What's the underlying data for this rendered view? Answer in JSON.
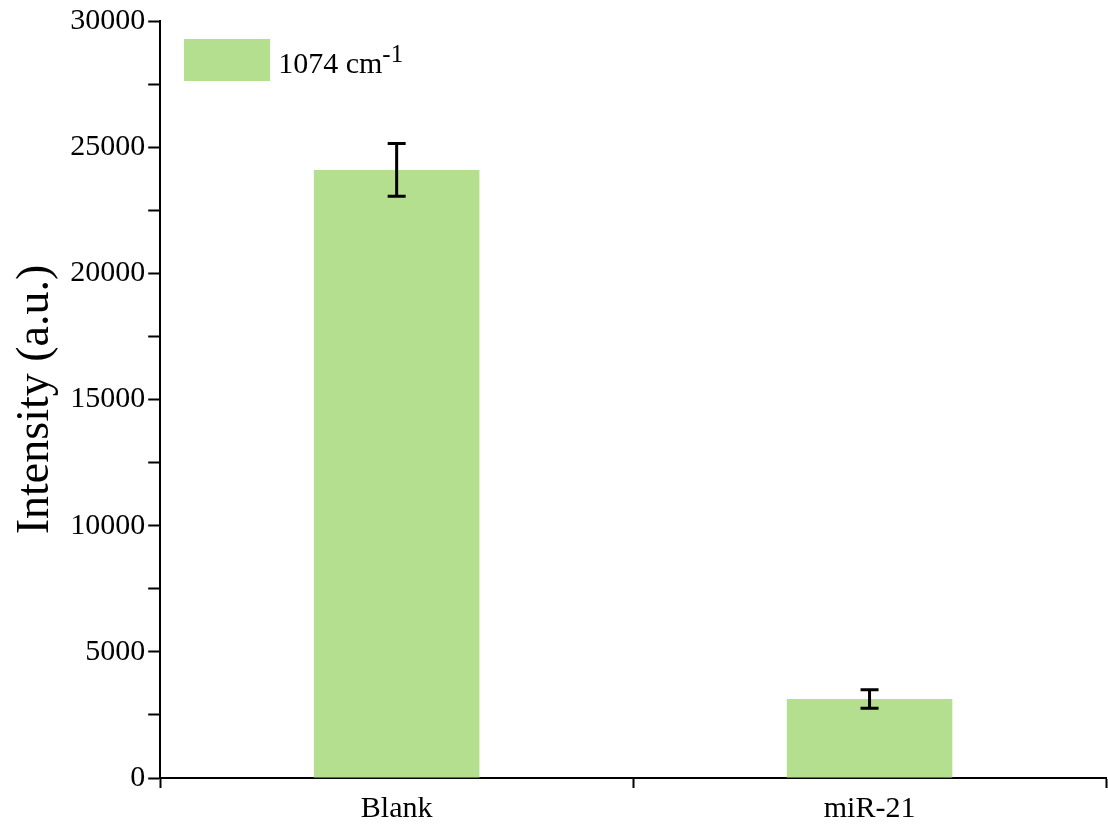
{
  "chart_data": {
    "type": "bar",
    "ylabel": "Intensity (a.u.)",
    "categories": [
      "Blank",
      "miR-21"
    ],
    "series": [
      {
        "name": "1074 cm$^{-1}$",
        "color": "#b4df8e",
        "values": [
          24100,
          3130
        ],
        "errors": [
          1050,
          370
        ]
      }
    ],
    "ylim": [
      0,
      30000
    ],
    "yticks": [
      0,
      {
        "value": 2500,
        "label": null
      },
      5000,
      {
        "value": 7500,
        "label": null
      },
      10000,
      {
        "value": 12500,
        "label": null
      },
      15000,
      {
        "value": 17500,
        "label": null
      },
      20000,
      {
        "value": 22500,
        "label": null
      },
      25000,
      {
        "value": 27500,
        "label": null
      },
      30000
    ],
    "grid": false,
    "legend": "top left"
  }
}
